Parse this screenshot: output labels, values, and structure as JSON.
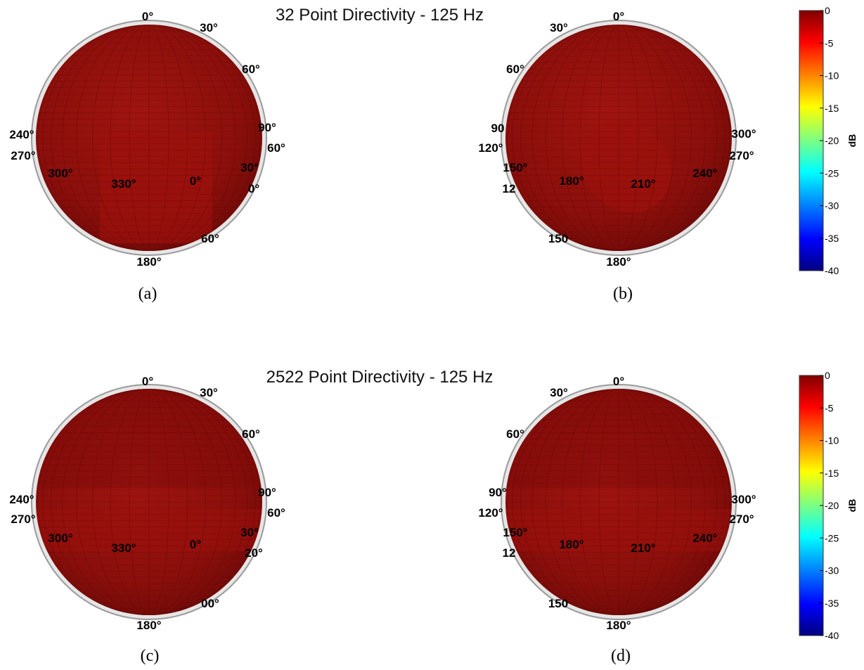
{
  "chart_data": [
    {
      "type": "heatmap",
      "title": "32 Point Directivity - 125 Hz",
      "panels": [
        {
          "caption": "(a)",
          "angle_labels": [
            "0°",
            "30°",
            "60°",
            "240°",
            "270°",
            "300°",
            "330°",
            "0°",
            "180°",
            "90°",
            "60°",
            "30°",
            "0°",
            "60°"
          ]
        },
        {
          "caption": "(b)",
          "angle_labels": [
            "0°",
            "30°",
            "60°",
            "90",
            "120°",
            "150°",
            "12",
            "180°",
            "210°",
            "240°",
            "300°",
            "270°",
            "150",
            "180°"
          ]
        }
      ],
      "colorbar": {
        "label": "dB",
        "ticks": [
          "0",
          "-5",
          "-10",
          "-15",
          "-20",
          "-25",
          "-30",
          "-35",
          "-40"
        ],
        "range": [
          -40,
          0
        ],
        "colormap": "jet"
      },
      "level_db": 0,
      "surface_color": "#8b0f0b"
    },
    {
      "type": "heatmap",
      "title": "2522 Point Directivity - 125 Hz",
      "panels": [
        {
          "caption": "(c)",
          "angle_labels": [
            "0°",
            "30°",
            "60°",
            "240°",
            "270°",
            "300°",
            "330°",
            "0°",
            "180°",
            "90°",
            "60°",
            "30°",
            "20°",
            "00°"
          ]
        },
        {
          "caption": "(d)",
          "angle_labels": [
            "0°",
            "30°",
            "60°",
            "90°",
            "120°",
            "150°",
            "12",
            "180°",
            "210°",
            "240°",
            "300°",
            "270°",
            "150",
            "180°"
          ]
        }
      ],
      "colorbar": {
        "label": "dB",
        "ticks": [
          "0",
          "-5",
          "-10",
          "-15",
          "-20",
          "-25",
          "-30",
          "-35",
          "-40"
        ],
        "range": [
          -40,
          0
        ],
        "colormap": "jet"
      },
      "level_db": 0,
      "surface_color": "#8b0f0b"
    }
  ]
}
